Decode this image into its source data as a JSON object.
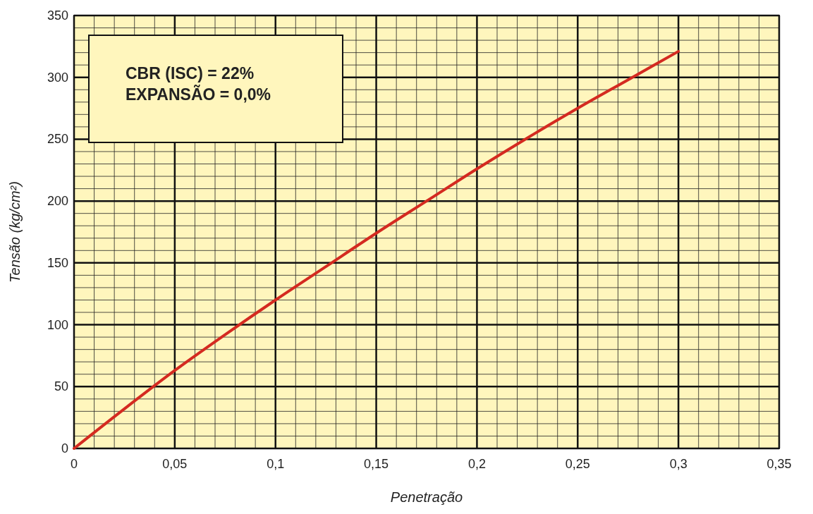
{
  "chart_data": {
    "type": "line",
    "xlabel": "Penetração",
    "ylabel": "Tensão (kg/cm²)",
    "x": [
      0,
      0.025,
      0.05,
      0.075,
      0.1,
      0.125,
      0.15,
      0.175,
      0.2,
      0.225,
      0.25,
      0.275,
      0.3
    ],
    "series": [
      {
        "color": "#d42a20",
        "values": [
          0,
          32,
          63,
          92,
          120,
          147,
          174,
          200,
          226,
          251,
          275,
          298,
          321
        ]
      }
    ],
    "xlim": [
      0,
      0.35
    ],
    "xticks": [
      0,
      {
        "value": 0.05,
        "label": "0,05"
      },
      {
        "value": 0.1,
        "label": "0,1"
      },
      {
        "value": 0.15,
        "label": "0,15"
      },
      {
        "value": 0.2,
        "label": "0,2"
      },
      {
        "value": 0.25,
        "label": "0,25"
      },
      {
        "value": 0.3,
        "label": "0,3"
      },
      {
        "value": 0.35,
        "label": "0,35"
      }
    ],
    "ylim": [
      0,
      350
    ],
    "yticks": [
      0,
      50,
      100,
      150,
      200,
      250,
      300,
      350
    ],
    "grid": true,
    "marker": "none",
    "line_style": "solid",
    "annotations": [
      "CBR (ISC) = 22%",
      "EXPANSÃO = 0,0%"
    ]
  }
}
